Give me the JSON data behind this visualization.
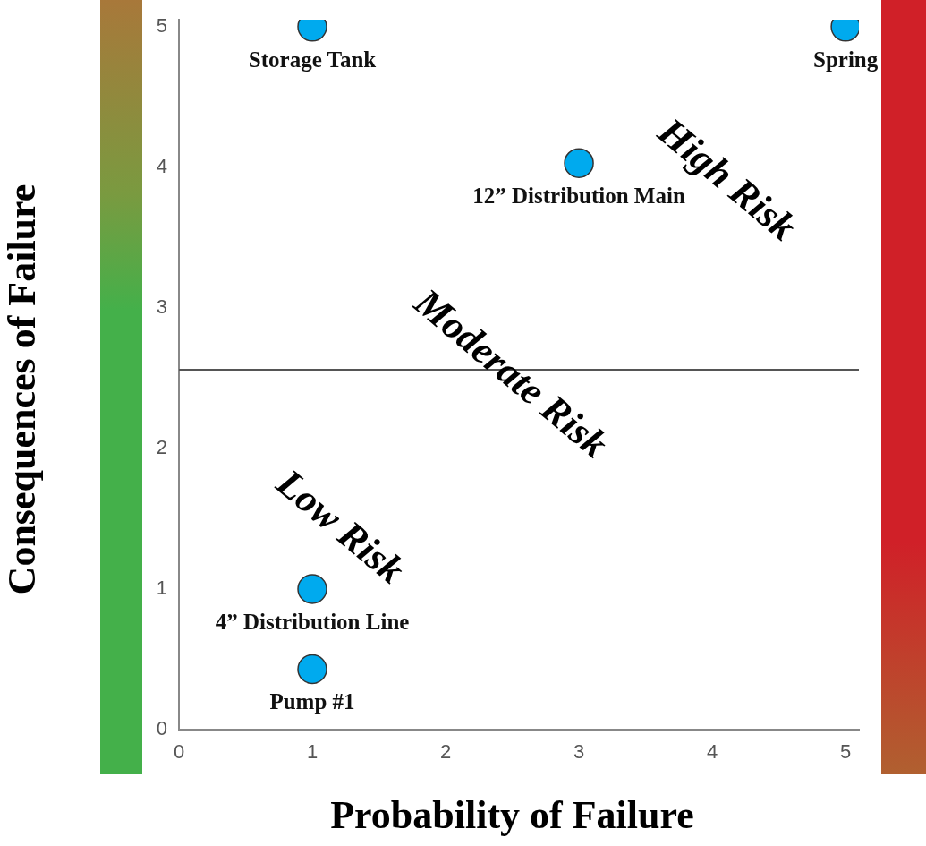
{
  "chart_data": {
    "type": "scatter",
    "xlabel": "Probability of Failure",
    "ylabel": "Consequences of Failure",
    "xlim": [
      0,
      5.1
    ],
    "ylim": [
      0,
      5.05
    ],
    "xticks": [
      0,
      1,
      2,
      3,
      4,
      5
    ],
    "yticks": [
      0,
      1,
      2,
      3,
      4,
      5
    ],
    "grid": false,
    "legend": false,
    "marker": "circle",
    "series": [
      {
        "name": "Storage Tank",
        "color": "#00aaee",
        "x": [
          1
        ],
        "values": [
          5
        ]
      },
      {
        "name": "Spring",
        "color": "#00aaee",
        "x": [
          5
        ],
        "values": [
          5
        ]
      },
      {
        "name": "12” Distribution Main",
        "color": "#00aaee",
        "x": [
          3
        ],
        "values": [
          4.03
        ]
      },
      {
        "name": "4” Distribution Line",
        "color": "#00aaee",
        "x": [
          1
        ],
        "values": [
          1
        ]
      },
      {
        "name": "Pump #1",
        "color": "#00aaee",
        "x": [
          1
        ],
        "values": [
          0.43
        ]
      }
    ],
    "ref_lines": [
      {
        "axis": "y",
        "value": 2.56,
        "color": "#555555"
      }
    ],
    "annotations": [
      "High Risk",
      "Moderate Risk",
      "Low Risk"
    ]
  }
}
